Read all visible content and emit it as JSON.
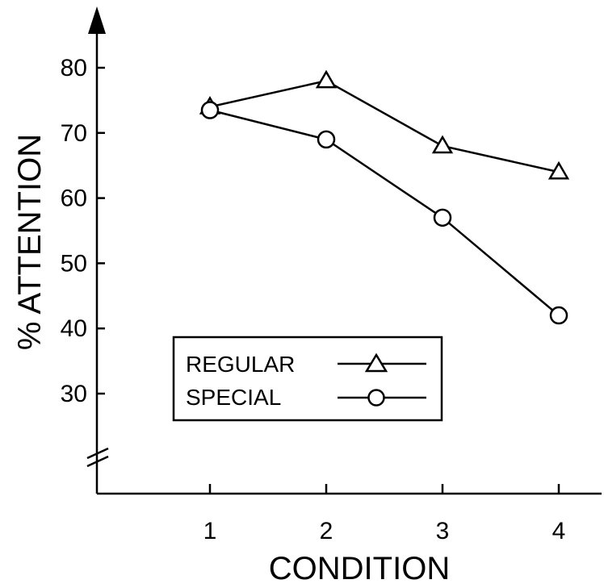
{
  "chart_data": {
    "type": "line",
    "title": "",
    "xlabel": "CONDITION",
    "ylabel": "% ATTENTION",
    "x": [
      1,
      2,
      3,
      4
    ],
    "x_ticks": [
      "1",
      "2",
      "3",
      "4"
    ],
    "y_ticks": [
      "30",
      "40",
      "50",
      "60",
      "70",
      "80"
    ],
    "ylim": [
      30,
      80
    ],
    "axis_break": true,
    "grid": false,
    "legend_position": "bottom-left",
    "series": [
      {
        "name": "REGULAR",
        "marker": "triangle",
        "values": [
          74,
          78,
          68,
          64
        ]
      },
      {
        "name": "SPECIAL",
        "marker": "circle",
        "values": [
          73.5,
          69,
          57,
          42
        ]
      }
    ]
  }
}
